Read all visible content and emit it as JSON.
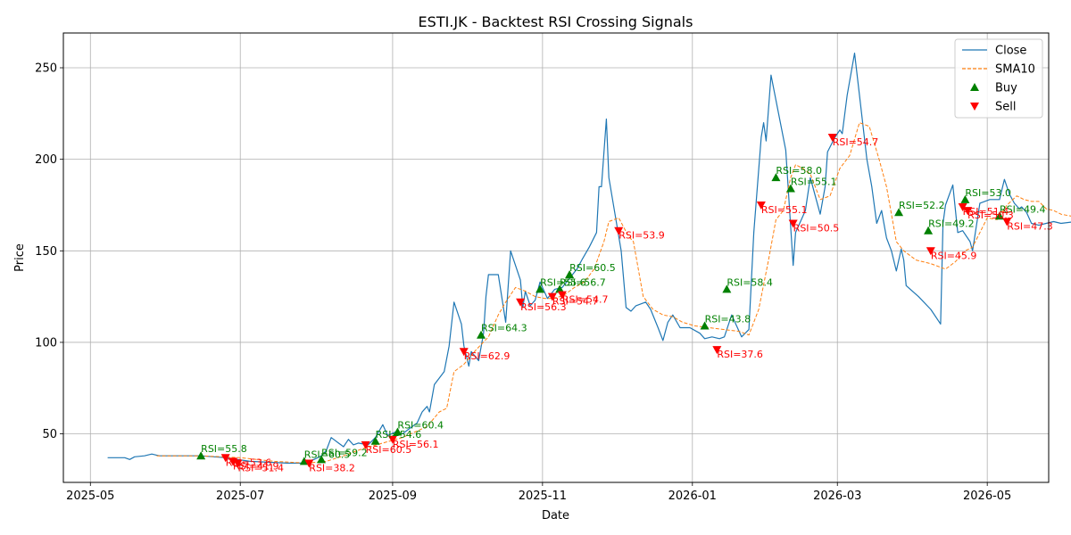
{
  "chart_data": {
    "type": "line",
    "title": "ESTI.JK - Backtest RSI Crossing Signals",
    "xlabel": "Date",
    "ylabel": "Price",
    "xlim": [
      "2025-04-20",
      "2026-05-26"
    ],
    "ylim": [
      23.5,
      269
    ],
    "x_ticks": [
      "2025-05-01",
      "2025-07-01",
      "2025-09-01",
      "2025-11-01",
      "2026-01-01",
      "2026-03-01",
      "2026-05-01"
    ],
    "x_tick_labels": [
      "2025-05",
      "2025-07",
      "2025-09",
      "2025-11",
      "2026-01",
      "2026-03",
      "2026-05"
    ],
    "y_ticks": [
      50,
      100,
      150,
      200,
      250
    ],
    "grid": true,
    "legend_position": "top-right",
    "colors": {
      "close": "#1f77b4",
      "sma": "#ff7f0e",
      "buy": "#008000",
      "sell": "#ff0000"
    },
    "series": [
      {
        "name": "Close",
        "style": "solid",
        "points": [
          [
            "2025-05-08",
            37
          ],
          [
            "2025-05-15",
            37
          ],
          [
            "2025-05-17",
            36
          ],
          [
            "2025-05-19",
            37.5
          ],
          [
            "2025-05-23",
            38
          ],
          [
            "2025-05-26",
            39
          ],
          [
            "2025-05-29",
            38
          ],
          [
            "2025-06-10",
            38
          ],
          [
            "2025-06-15",
            38
          ],
          [
            "2025-06-25",
            37
          ],
          [
            "2025-07-05",
            35
          ],
          [
            "2025-07-20",
            34
          ],
          [
            "2025-07-26",
            34
          ],
          [
            "2025-07-28",
            35
          ],
          [
            "2025-07-31",
            36
          ],
          [
            "2025-08-03",
            38
          ],
          [
            "2025-08-05",
            41
          ],
          [
            "2025-08-07",
            48
          ],
          [
            "2025-08-10",
            45
          ],
          [
            "2025-08-12",
            43
          ],
          [
            "2025-08-14",
            47
          ],
          [
            "2025-08-16",
            44
          ],
          [
            "2025-08-18",
            45
          ],
          [
            "2025-08-22",
            44
          ],
          [
            "2025-08-25",
            48
          ],
          [
            "2025-08-28",
            55
          ],
          [
            "2025-08-30",
            49
          ],
          [
            "2025-09-02",
            51
          ],
          [
            "2025-09-05",
            50
          ],
          [
            "2025-09-08",
            53
          ],
          [
            "2025-09-11",
            56
          ],
          [
            "2025-09-13",
            62
          ],
          [
            "2025-09-15",
            65
          ],
          [
            "2025-09-16",
            62
          ],
          [
            "2025-09-18",
            77
          ],
          [
            "2025-09-22",
            84
          ],
          [
            "2025-09-24",
            98
          ],
          [
            "2025-09-26",
            122
          ],
          [
            "2025-09-29",
            110
          ],
          [
            "2025-09-30",
            98
          ],
          [
            "2025-10-02",
            87
          ],
          [
            "2025-10-03",
            95
          ],
          [
            "2025-10-06",
            90
          ],
          [
            "2025-10-08",
            105
          ],
          [
            "2025-10-09",
            125
          ],
          [
            "2025-10-10",
            137
          ],
          [
            "2025-10-13",
            137
          ],
          [
            "2025-10-14",
            137
          ],
          [
            "2025-10-17",
            111
          ],
          [
            "2025-10-19",
            150
          ],
          [
            "2025-10-23",
            134
          ],
          [
            "2025-10-24",
            119
          ],
          [
            "2025-10-25",
            128
          ],
          [
            "2025-10-27",
            120
          ],
          [
            "2025-10-29",
            123
          ],
          [
            "2025-10-31",
            133
          ],
          [
            "2025-11-03",
            124
          ],
          [
            "2025-11-06",
            129
          ],
          [
            "2025-11-09",
            130
          ],
          [
            "2025-11-12",
            135
          ],
          [
            "2025-11-15",
            140
          ],
          [
            "2025-11-17",
            145
          ],
          [
            "2025-11-20",
            152
          ],
          [
            "2025-11-23",
            160
          ],
          [
            "2025-11-24",
            185
          ],
          [
            "2025-11-25",
            185
          ],
          [
            "2025-11-27",
            222
          ],
          [
            "2025-11-28",
            190
          ],
          [
            "2025-12-03",
            150
          ],
          [
            "2025-12-05",
            119
          ],
          [
            "2025-12-07",
            117
          ],
          [
            "2025-12-09",
            120
          ],
          [
            "2025-12-13",
            122
          ],
          [
            "2025-12-15",
            118
          ],
          [
            "2025-12-18",
            108
          ],
          [
            "2025-12-20",
            101
          ],
          [
            "2025-12-22",
            111
          ],
          [
            "2025-12-24",
            115
          ],
          [
            "2025-12-27",
            108
          ],
          [
            "2025-12-31",
            108
          ],
          [
            "2026-01-04",
            105
          ],
          [
            "2026-01-06",
            102
          ],
          [
            "2026-01-09",
            103
          ],
          [
            "2026-01-12",
            102
          ],
          [
            "2026-01-14",
            103
          ],
          [
            "2026-01-17",
            115
          ],
          [
            "2026-01-21",
            103
          ],
          [
            "2026-01-24",
            107
          ],
          [
            "2026-01-26",
            160
          ],
          [
            "2026-01-29",
            212
          ],
          [
            "2026-01-30",
            220
          ],
          [
            "2026-01-31",
            210
          ],
          [
            "2026-02-02",
            246
          ],
          [
            "2026-02-08",
            205
          ],
          [
            "2026-02-11",
            142
          ],
          [
            "2026-02-12",
            160
          ],
          [
            "2026-02-16",
            172
          ],
          [
            "2026-02-18",
            190
          ],
          [
            "2026-02-22",
            170
          ],
          [
            "2026-02-24",
            185
          ],
          [
            "2026-02-25",
            204
          ],
          [
            "2026-02-28",
            212
          ],
          [
            "2026-03-02",
            216
          ],
          [
            "2026-03-03",
            214
          ],
          [
            "2026-03-05",
            235
          ],
          [
            "2026-03-08",
            258
          ],
          [
            "2026-03-10",
            235
          ],
          [
            "2026-03-13",
            200
          ],
          [
            "2026-03-15",
            185
          ],
          [
            "2026-03-17",
            165
          ],
          [
            "2026-03-19",
            172
          ],
          [
            "2026-03-21",
            157
          ],
          [
            "2026-03-23",
            150
          ],
          [
            "2026-03-25",
            139
          ],
          [
            "2026-03-27",
            151
          ],
          [
            "2026-03-28",
            145
          ],
          [
            "2026-03-29",
            131
          ],
          [
            "2026-04-03",
            125
          ],
          [
            "2026-04-08",
            118
          ],
          [
            "2026-04-12",
            110
          ],
          [
            "2026-04-13",
            165
          ],
          [
            "2026-04-14",
            175
          ],
          [
            "2026-04-17",
            186
          ],
          [
            "2026-04-19",
            160
          ],
          [
            "2026-04-21",
            161
          ],
          [
            "2026-04-24",
            155
          ],
          [
            "2026-04-25",
            150
          ],
          [
            "2026-04-28",
            176
          ],
          [
            "2026-05-02",
            178
          ],
          [
            "2026-05-06",
            178
          ],
          [
            "2026-05-08",
            189
          ],
          [
            "2026-05-10",
            181
          ],
          [
            "2026-05-12",
            176
          ],
          [
            "2026-05-14",
            173
          ],
          [
            "2026-05-15",
            174
          ],
          [
            "2026-05-17",
            171
          ],
          [
            "2026-05-19",
            165
          ],
          [
            "2026-05-22",
            164
          ],
          [
            "2026-05-25",
            165
          ],
          [
            "2026-05-28",
            166
          ],
          [
            "2026-05-31",
            165
          ],
          [
            "2026-06-06",
            166
          ],
          [
            "2026-06-09",
            167
          ]
        ]
      },
      {
        "name": "SMA10",
        "style": "dashed",
        "points": [
          [
            "2025-05-28",
            38
          ],
          [
            "2025-06-15",
            38
          ],
          [
            "2025-07-01",
            37
          ],
          [
            "2025-07-15",
            35
          ],
          [
            "2025-07-28",
            34
          ],
          [
            "2025-08-05",
            35
          ],
          [
            "2025-08-12",
            38
          ],
          [
            "2025-08-20",
            42
          ],
          [
            "2025-08-28",
            45
          ],
          [
            "2025-09-05",
            48
          ],
          [
            "2025-09-10",
            51
          ],
          [
            "2025-09-15",
            54
          ],
          [
            "2025-09-20",
            62
          ],
          [
            "2025-09-23",
            64
          ],
          [
            "2025-09-26",
            84
          ],
          [
            "2025-09-30",
            88
          ],
          [
            "2025-10-05",
            96
          ],
          [
            "2025-10-10",
            103
          ],
          [
            "2025-10-14",
            115
          ],
          [
            "2025-10-17",
            122
          ],
          [
            "2025-10-21",
            130
          ],
          [
            "2025-10-25",
            128
          ],
          [
            "2025-10-29",
            125
          ],
          [
            "2025-11-02",
            124
          ],
          [
            "2025-11-06",
            124
          ],
          [
            "2025-11-10",
            126
          ],
          [
            "2025-11-14",
            130
          ],
          [
            "2025-11-18",
            133
          ],
          [
            "2025-11-22",
            140
          ],
          [
            "2025-11-26",
            155
          ],
          [
            "2025-11-28",
            166
          ],
          [
            "2025-12-02",
            168
          ],
          [
            "2025-12-06",
            158
          ],
          [
            "2025-12-08",
            155
          ],
          [
            "2025-12-12",
            125
          ],
          [
            "2025-12-16",
            118
          ],
          [
            "2025-12-20",
            115
          ],
          [
            "2025-12-24",
            114
          ],
          [
            "2025-12-28",
            111
          ],
          [
            "2026-01-02",
            109
          ],
          [
            "2026-01-08",
            108
          ],
          [
            "2026-01-14",
            107
          ],
          [
            "2026-01-20",
            106
          ],
          [
            "2026-01-24",
            104
          ],
          [
            "2026-01-28",
            118
          ],
          [
            "2026-02-01",
            145
          ],
          [
            "2026-02-04",
            167
          ],
          [
            "2026-02-07",
            172
          ],
          [
            "2026-02-10",
            190
          ],
          [
            "2026-02-12",
            197
          ],
          [
            "2026-02-15",
            195
          ],
          [
            "2026-02-18",
            192
          ],
          [
            "2026-02-22",
            178
          ],
          [
            "2026-02-26",
            180
          ],
          [
            "2026-03-02",
            195
          ],
          [
            "2026-03-06",
            202
          ],
          [
            "2026-03-10",
            220
          ],
          [
            "2026-03-14",
            218
          ],
          [
            "2026-03-18",
            200
          ],
          [
            "2026-03-21",
            185
          ],
          [
            "2026-03-25",
            155
          ],
          [
            "2026-03-28",
            150
          ],
          [
            "2026-04-02",
            145
          ],
          [
            "2026-04-08",
            143
          ],
          [
            "2026-04-14",
            140
          ],
          [
            "2026-04-18",
            144
          ],
          [
            "2026-04-22",
            150
          ],
          [
            "2026-04-25",
            152
          ],
          [
            "2026-05-01",
            168
          ],
          [
            "2026-05-05",
            167
          ],
          [
            "2026-05-09",
            175
          ],
          [
            "2026-05-13",
            180
          ],
          [
            "2026-05-16",
            178
          ],
          [
            "2026-05-19",
            177
          ],
          [
            "2026-05-22",
            177
          ],
          [
            "2026-05-25",
            173
          ],
          [
            "2026-05-28",
            172
          ],
          [
            "2026-05-31",
            170
          ],
          [
            "2026-06-04",
            169
          ],
          [
            "2026-06-09",
            166
          ]
        ]
      }
    ],
    "buy_signals": [
      {
        "x": "2025-06-15",
        "y": 38,
        "label": "RSI=55.8"
      },
      {
        "x": "2025-07-27",
        "y": 35,
        "label": "RSI=60.5"
      },
      {
        "x": "2025-08-03",
        "y": 36,
        "label": "RSI=59.2"
      },
      {
        "x": "2025-08-25",
        "y": 46,
        "label": "RSI=54.6"
      },
      {
        "x": "2025-09-03",
        "y": 51,
        "label": "RSI=60.4"
      },
      {
        "x": "2025-10-07",
        "y": 104,
        "label": "RSI=64.3"
      },
      {
        "x": "2025-10-31",
        "y": 129,
        "label": "RSI=55.6"
      },
      {
        "x": "2025-11-08",
        "y": 129,
        "label": "RSI=56.7"
      },
      {
        "x": "2025-11-12",
        "y": 137,
        "label": "RSI=60.5"
      },
      {
        "x": "2026-01-06",
        "y": 109,
        "label": "RSI=43.8"
      },
      {
        "x": "2026-01-15",
        "y": 129,
        "label": "RSI=58.4"
      },
      {
        "x": "2026-02-04",
        "y": 190,
        "label": "RSI=58.0"
      },
      {
        "x": "2026-02-10",
        "y": 184,
        "label": "RSI=55.1"
      },
      {
        "x": "2026-03-26",
        "y": 171,
        "label": "RSI=52.2"
      },
      {
        "x": "2026-04-07",
        "y": 161,
        "label": "RSI=49.2"
      },
      {
        "x": "2026-04-22",
        "y": 178,
        "label": "RSI=53.0"
      },
      {
        "x": "2026-05-06",
        "y": 169,
        "label": "RSI=49.4"
      }
    ],
    "sell_signals": [
      {
        "x": "2025-06-25",
        "y": 37,
        "label": "RSI=53.6"
      },
      {
        "x": "2025-06-28",
        "y": 35,
        "label": "RSI=41.9"
      },
      {
        "x": "2025-06-30",
        "y": 34,
        "label": "RSI=51.4"
      },
      {
        "x": "2025-07-29",
        "y": 34,
        "label": "RSI=38.2"
      },
      {
        "x": "2025-08-21",
        "y": 44,
        "label": "RSI=60.5"
      },
      {
        "x": "2025-09-01",
        "y": 47,
        "label": "RSI=56.1"
      },
      {
        "x": "2025-09-30",
        "y": 95,
        "label": "RSI=62.9"
      },
      {
        "x": "2025-10-23",
        "y": 122,
        "label": "RSI=56.3"
      },
      {
        "x": "2025-11-05",
        "y": 125,
        "label": "RSI=54.7"
      },
      {
        "x": "2025-11-09",
        "y": 126,
        "label": "RSI=54.7"
      },
      {
        "x": "2025-12-02",
        "y": 161,
        "label": "RSI=53.9"
      },
      {
        "x": "2026-01-11",
        "y": 96,
        "label": "RSI=37.6"
      },
      {
        "x": "2026-01-29",
        "y": 175,
        "label": "RSI=55.1"
      },
      {
        "x": "2026-02-11",
        "y": 165,
        "label": "RSI=50.5"
      },
      {
        "x": "2026-02-27",
        "y": 212,
        "label": "RSI=54.7"
      },
      {
        "x": "2026-04-08",
        "y": 150,
        "label": "RSI=45.9"
      },
      {
        "x": "2026-04-21",
        "y": 174,
        "label": "RSI=51.4"
      },
      {
        "x": "2026-04-23",
        "y": 172,
        "label": "RSI=50.3"
      },
      {
        "x": "2026-05-09",
        "y": 166,
        "label": "RSI=47.3"
      }
    ],
    "legend": [
      {
        "label": "Close",
        "kind": "line-solid",
        "color_key": "close"
      },
      {
        "label": "SMA10",
        "kind": "line-dashed",
        "color_key": "sma"
      },
      {
        "label": "Buy",
        "kind": "triangle-up",
        "color_key": "buy"
      },
      {
        "label": "Sell",
        "kind": "triangle-down",
        "color_key": "sell"
      }
    ]
  }
}
